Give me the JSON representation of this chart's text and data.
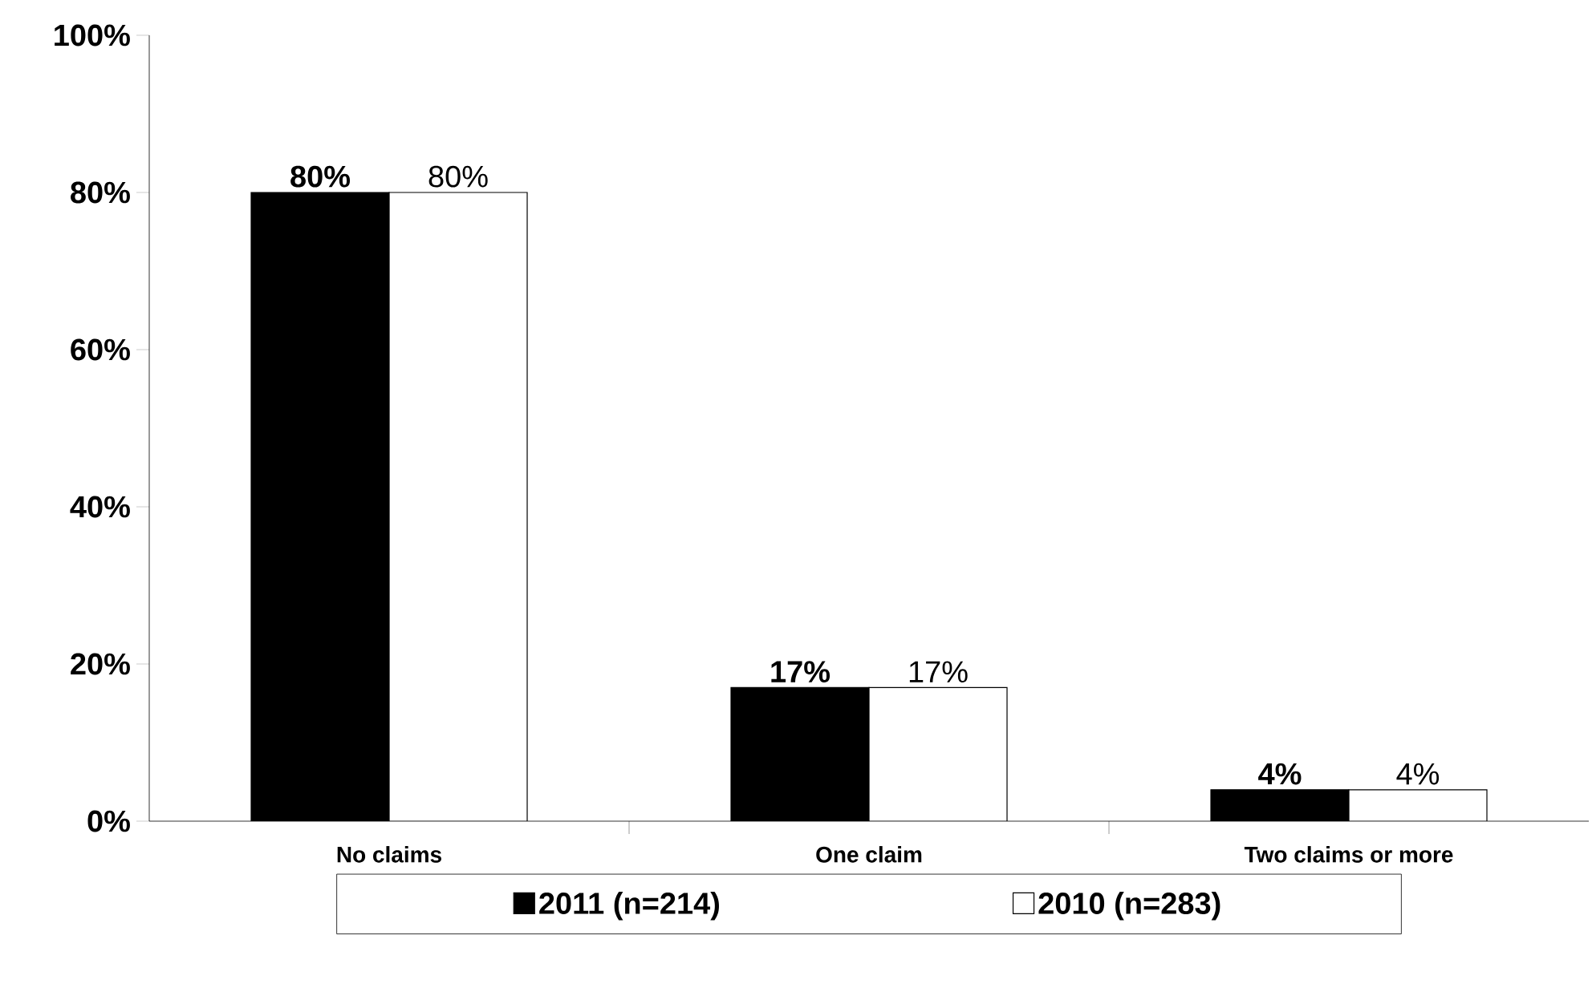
{
  "chart_data": {
    "type": "bar",
    "categories": [
      "No claims",
      "One claim",
      "Two claims or more"
    ],
    "series": [
      {
        "name": "2011 (n=214)",
        "color": "#000000",
        "values": [
          80,
          17,
          4
        ],
        "value_labels": [
          "80%",
          "17%",
          "4%"
        ]
      },
      {
        "name": "2010 (n=283)",
        "color": "#ffffff",
        "values": [
          80,
          17,
          4
        ],
        "value_labels": [
          "80%",
          "17%",
          "4%"
        ]
      }
    ],
    "ylim": [
      0,
      100
    ],
    "yticks": [
      {
        "value": 0,
        "label": "0%"
      },
      {
        "value": 20,
        "label": "20%"
      },
      {
        "value": 40,
        "label": "40%"
      },
      {
        "value": 60,
        "label": "60%"
      },
      {
        "value": 80,
        "label": "80%"
      },
      {
        "value": 100,
        "label": "100%"
      }
    ],
    "grid": false,
    "legend": "bottom"
  }
}
